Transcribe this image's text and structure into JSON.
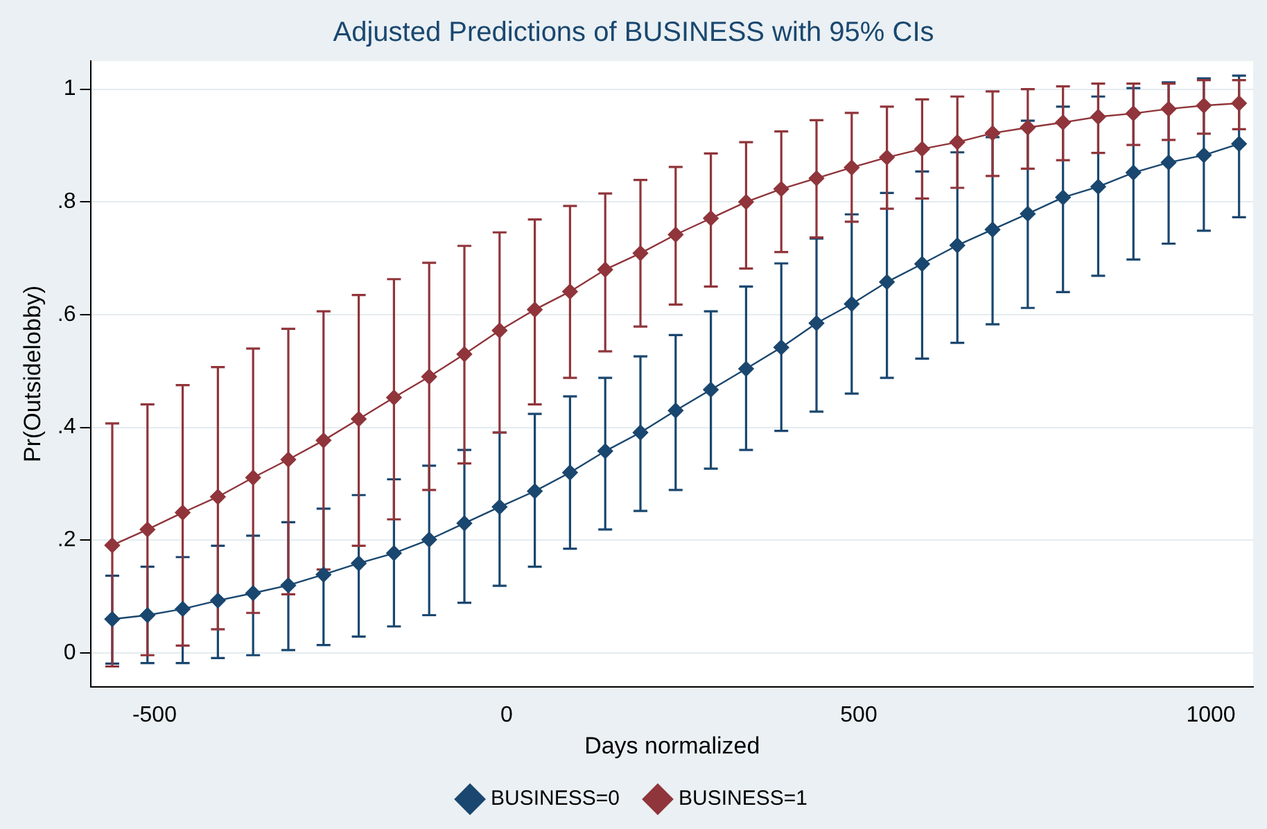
{
  "chart_data": {
    "type": "line",
    "title": "Adjusted Predictions of BUSINESS with 95% CIs",
    "xlabel": "Days normalized",
    "ylabel": "Pr(Outsidelobby)",
    "x": [
      -560,
      -510,
      -460,
      -410,
      -360,
      -310,
      -260,
      -210,
      -160,
      -110,
      -60,
      -10,
      40,
      90,
      140,
      190,
      240,
      290,
      340,
      390,
      440,
      490,
      540,
      590,
      640,
      690,
      740,
      790,
      840,
      890,
      940,
      990,
      1040
    ],
    "series": [
      {
        "name": "BUSINESS=0",
        "color": "#1a476f",
        "values": [
          0.06,
          0.067,
          0.078,
          0.093,
          0.106,
          0.12,
          0.139,
          0.159,
          0.177,
          0.201,
          0.23,
          0.259,
          0.287,
          0.32,
          0.358,
          0.391,
          0.43,
          0.467,
          0.504,
          0.542,
          0.585,
          0.619,
          0.658,
          0.69,
          0.723,
          0.751,
          0.779,
          0.808,
          0.827,
          0.852,
          0.87,
          0.883,
          0.903
        ],
        "errors": [
          [
            -0.019,
            0.137
          ],
          [
            -0.018,
            0.153
          ],
          [
            -0.018,
            0.17
          ],
          [
            -0.009,
            0.19
          ],
          [
            -0.004,
            0.208
          ],
          [
            0.005,
            0.232
          ],
          [
            0.014,
            0.256
          ],
          [
            0.029,
            0.28
          ],
          [
            0.047,
            0.308
          ],
          [
            0.067,
            0.332
          ],
          [
            0.089,
            0.36
          ],
          [
            0.119,
            0.391
          ],
          [
            0.153,
            0.424
          ],
          [
            0.185,
            0.455
          ],
          [
            0.219,
            0.488
          ],
          [
            0.252,
            0.526
          ],
          [
            0.289,
            0.564
          ],
          [
            0.327,
            0.606
          ],
          [
            0.36,
            0.65
          ],
          [
            0.394,
            0.691
          ],
          [
            0.428,
            0.735
          ],
          [
            0.46,
            0.778
          ],
          [
            0.488,
            0.816
          ],
          [
            0.522,
            0.854
          ],
          [
            0.55,
            0.888
          ],
          [
            0.583,
            0.915
          ],
          [
            0.612,
            0.944
          ],
          [
            0.64,
            0.969
          ],
          [
            0.669,
            0.987
          ],
          [
            0.698,
            1.002
          ],
          [
            0.726,
            1.012
          ],
          [
            0.749,
            1.019
          ],
          [
            0.773,
            1.024
          ]
        ]
      },
      {
        "name": "BUSINESS=1",
        "color": "#90353b",
        "values": [
          0.191,
          0.219,
          0.249,
          0.277,
          0.311,
          0.343,
          0.377,
          0.415,
          0.453,
          0.49,
          0.53,
          0.572,
          0.609,
          0.641,
          0.68,
          0.709,
          0.742,
          0.771,
          0.8,
          0.823,
          0.842,
          0.861,
          0.879,
          0.894,
          0.906,
          0.922,
          0.932,
          0.941,
          0.951,
          0.957,
          0.965,
          0.971,
          0.975
        ],
        "errors": [
          [
            -0.024,
            0.407
          ],
          [
            -0.004,
            0.441
          ],
          [
            0.013,
            0.475
          ],
          [
            0.042,
            0.507
          ],
          [
            0.071,
            0.54
          ],
          [
            0.104,
            0.575
          ],
          [
            0.148,
            0.606
          ],
          [
            0.19,
            0.635
          ],
          [
            0.237,
            0.663
          ],
          [
            0.289,
            0.692
          ],
          [
            0.336,
            0.722
          ],
          [
            0.391,
            0.746
          ],
          [
            0.441,
            0.769
          ],
          [
            0.488,
            0.793
          ],
          [
            0.535,
            0.815
          ],
          [
            0.579,
            0.839
          ],
          [
            0.618,
            0.862
          ],
          [
            0.65,
            0.886
          ],
          [
            0.682,
            0.906
          ],
          [
            0.711,
            0.925
          ],
          [
            0.737,
            0.945
          ],
          [
            0.765,
            0.958
          ],
          [
            0.788,
            0.969
          ],
          [
            0.806,
            0.982
          ],
          [
            0.825,
            0.987
          ],
          [
            0.846,
            0.996
          ],
          [
            0.859,
            1.0
          ],
          [
            0.874,
            1.005
          ],
          [
            0.887,
            1.01
          ],
          [
            0.901,
            1.01
          ],
          [
            0.91,
            1.01
          ],
          [
            0.921,
            1.016
          ],
          [
            0.929,
            1.016
          ]
        ]
      }
    ],
    "xlim": [
      -590,
      1060
    ],
    "xticks": [
      -500,
      0,
      500,
      1000
    ],
    "ylim": [
      -0.06,
      1.05
    ],
    "yticks": [
      {
        "value": 0,
        "label": "0"
      },
      {
        "value": 0.2,
        "label": ".2"
      },
      {
        "value": 0.4,
        "label": ".4"
      },
      {
        "value": 0.6,
        "label": ".6"
      },
      {
        "value": 0.8,
        "label": ".8"
      },
      {
        "value": 1,
        "label": "1"
      }
    ],
    "grid": "y",
    "legend": "bottom",
    "marker": "diamond",
    "line_style": "solid"
  }
}
